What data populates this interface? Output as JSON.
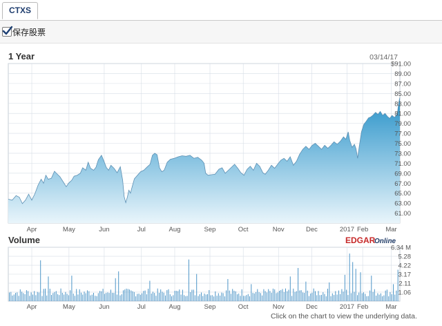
{
  "tab": {
    "label": "CTXS"
  },
  "save": {
    "label": "保存股票",
    "checked": true
  },
  "colors": {
    "fill_top": "#2a93c9",
    "fill_bottom": "#e9f5fb",
    "line": "#5b8fb3",
    "volume": "#4c95c7",
    "grid": "#d6dde6"
  },
  "chart_data": [
    {
      "type": "area",
      "title": "1 Year",
      "date_label": "03/14/17",
      "x_labels": [
        "Apr",
        "May",
        "Jun",
        "Jul",
        "Aug",
        "Sep",
        "Oct",
        "Nov",
        "Dec",
        "2017",
        "Feb",
        "Mar"
      ],
      "y_ticks": [
        "$91.00",
        "89.00",
        "87.00",
        "85.00",
        "83.00",
        "81.00",
        "79.00",
        "77.00",
        "75.00",
        "73.00",
        "71.00",
        "69.00",
        "67.00",
        "65.00",
        "63.00",
        "61.00"
      ],
      "ylim": [
        59,
        91
      ],
      "price_series": [
        [
          0.0,
          63.8
        ],
        [
          0.01,
          63.6
        ],
        [
          0.02,
          64.5
        ],
        [
          0.028,
          64.2
        ],
        [
          0.036,
          62.9
        ],
        [
          0.044,
          63.6
        ],
        [
          0.052,
          64.8
        ],
        [
          0.06,
          63.6
        ],
        [
          0.068,
          64.9
        ],
        [
          0.076,
          66.6
        ],
        [
          0.084,
          67.8
        ],
        [
          0.09,
          67.0
        ],
        [
          0.096,
          68.6
        ],
        [
          0.102,
          67.8
        ],
        [
          0.11,
          68.0
        ],
        [
          0.118,
          69.4
        ],
        [
          0.124,
          68.9
        ],
        [
          0.132,
          68.3
        ],
        [
          0.14,
          67.3
        ],
        [
          0.148,
          66.3
        ],
        [
          0.154,
          67.0
        ],
        [
          0.162,
          67.6
        ],
        [
          0.168,
          68.4
        ],
        [
          0.176,
          68.6
        ],
        [
          0.184,
          69.0
        ],
        [
          0.19,
          70.1
        ],
        [
          0.198,
          69.6
        ],
        [
          0.204,
          71.2
        ],
        [
          0.21,
          70.0
        ],
        [
          0.218,
          69.6
        ],
        [
          0.224,
          70.2
        ],
        [
          0.23,
          71.7
        ],
        [
          0.238,
          72.6
        ],
        [
          0.244,
          71.5
        ],
        [
          0.25,
          70.2
        ],
        [
          0.256,
          69.6
        ],
        [
          0.262,
          70.6
        ],
        [
          0.27,
          70.0
        ],
        [
          0.278,
          69.1
        ],
        [
          0.286,
          70.3
        ],
        [
          0.292,
          67.6
        ],
        [
          0.296,
          64.3
        ],
        [
          0.3,
          63.1
        ],
        [
          0.304,
          64.2
        ],
        [
          0.308,
          65.6
        ],
        [
          0.312,
          65.0
        ],
        [
          0.316,
          66.2
        ],
        [
          0.322,
          67.9
        ],
        [
          0.33,
          68.6
        ],
        [
          0.338,
          69.3
        ],
        [
          0.346,
          69.6
        ],
        [
          0.354,
          70.2
        ],
        [
          0.362,
          70.8
        ],
        [
          0.368,
          72.6
        ],
        [
          0.374,
          73.0
        ],
        [
          0.38,
          72.7
        ],
        [
          0.386,
          70.1
        ],
        [
          0.392,
          69.3
        ],
        [
          0.398,
          69.6
        ],
        [
          0.406,
          71.2
        ],
        [
          0.414,
          71.8
        ],
        [
          0.424,
          72.0
        ],
        [
          0.434,
          72.3
        ],
        [
          0.444,
          72.5
        ],
        [
          0.454,
          72.4
        ],
        [
          0.464,
          72.6
        ],
        [
          0.474,
          72.0
        ],
        [
          0.484,
          72.2
        ],
        [
          0.494,
          71.6
        ],
        [
          0.5,
          71.0
        ],
        [
          0.504,
          69.0
        ],
        [
          0.51,
          68.6
        ],
        [
          0.518,
          68.7
        ],
        [
          0.528,
          68.8
        ],
        [
          0.538,
          69.8
        ],
        [
          0.546,
          70.1
        ],
        [
          0.554,
          69.0
        ],
        [
          0.562,
          69.6
        ],
        [
          0.57,
          70.2
        ],
        [
          0.578,
          70.8
        ],
        [
          0.586,
          70.0
        ],
        [
          0.594,
          69.1
        ],
        [
          0.602,
          68.6
        ],
        [
          0.61,
          69.8
        ],
        [
          0.618,
          70.4
        ],
        [
          0.626,
          69.6
        ],
        [
          0.634,
          71.0
        ],
        [
          0.642,
          70.4
        ],
        [
          0.65,
          69.1
        ],
        [
          0.656,
          68.8
        ],
        [
          0.664,
          69.6
        ],
        [
          0.672,
          70.6
        ],
        [
          0.68,
          70.0
        ],
        [
          0.688,
          70.8
        ],
        [
          0.696,
          71.6
        ],
        [
          0.704,
          72.0
        ],
        [
          0.712,
          71.4
        ],
        [
          0.72,
          72.3
        ],
        [
          0.728,
          70.6
        ],
        [
          0.736,
          71.4
        ],
        [
          0.744,
          72.8
        ],
        [
          0.752,
          73.8
        ],
        [
          0.76,
          74.4
        ],
        [
          0.768,
          73.8
        ],
        [
          0.776,
          74.6
        ],
        [
          0.784,
          75.0
        ],
        [
          0.792,
          74.4
        ],
        [
          0.8,
          73.8
        ],
        [
          0.808,
          74.6
        ],
        [
          0.816,
          74.0
        ],
        [
          0.824,
          74.6
        ],
        [
          0.832,
          75.3
        ],
        [
          0.84,
          74.8
        ],
        [
          0.848,
          75.4
        ],
        [
          0.856,
          76.3
        ],
        [
          0.862,
          75.8
        ],
        [
          0.868,
          77.3
        ],
        [
          0.872,
          75.6
        ],
        [
          0.878,
          74.2
        ],
        [
          0.884,
          74.8
        ],
        [
          0.888,
          73.9
        ],
        [
          0.892,
          72.0
        ],
        [
          0.896,
          74.2
        ],
        [
          0.902,
          77.3
        ],
        [
          0.908,
          78.8
        ],
        [
          0.914,
          79.4
        ],
        [
          0.92,
          80.1
        ],
        [
          0.926,
          80.3
        ],
        [
          0.932,
          80.7
        ],
        [
          0.938,
          81.2
        ],
        [
          0.944,
          80.8
        ],
        [
          0.95,
          81.4
        ],
        [
          0.956,
          80.6
        ],
        [
          0.962,
          81.0
        ],
        [
          0.968,
          80.4
        ],
        [
          0.974,
          80.0
        ],
        [
          0.98,
          80.6
        ],
        [
          0.986,
          80.2
        ],
        [
          0.99,
          80.5
        ],
        [
          0.994,
          81.2
        ],
        [
          0.997,
          83.1
        ],
        [
          1.0,
          84.2
        ]
      ],
      "volume_label": "Volume",
      "volume_ticks": [
        "6.34 M",
        "5.28",
        "4.22",
        "3.17",
        "2.11",
        "1.06"
      ],
      "volume_ylim": [
        0,
        6.34
      ],
      "logo": {
        "text1": "EDGAR",
        "text2": "Online"
      }
    }
  ],
  "footer": {
    "text": "Click on the chart to view the underlying data."
  }
}
